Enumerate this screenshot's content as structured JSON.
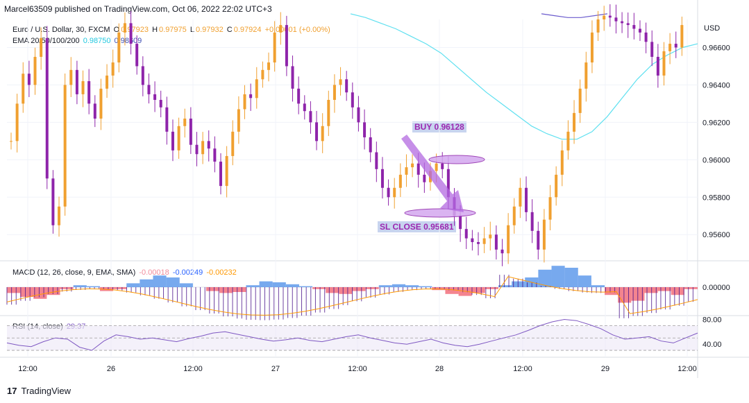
{
  "header": {
    "published": "Marcel63509 published on TradingView.com, Oct 06, 2022 22:02 UTC+3"
  },
  "legend_main": {
    "symbol": "Euro / U.S. Dollar, 30, FXCM",
    "o_label": "O",
    "o_val": "0.97923",
    "h_label": "H",
    "h_val": "0.97975",
    "l_label": "L",
    "l_val": "0.97932",
    "c_label": "C",
    "c_val": "0.97924",
    "change": "+0.00001 (+0.00%)",
    "ema_label": "EMA 20/50/100/200",
    "ema1": "0.98750",
    "ema2": "0.98609"
  },
  "legend_macd": {
    "label": "MACD (12, 26, close, 9, EMA, SMA)",
    "v1": "-0.00018",
    "v2": "-0.00249",
    "v3": "-0.00232"
  },
  "legend_rsi": {
    "label": "RSI (14, close)",
    "v1": "29.37"
  },
  "annotations": {
    "buy": "BUY 0.96128",
    "sl": "SL CLOSE 0.95681"
  },
  "footer": {
    "logo_mark": "17",
    "brand": "TradingView"
  },
  "colors": {
    "bull": "#f0a030",
    "bear": "#8e24aa",
    "ema_fast": "#5ee0f0",
    "ema_slow": "#6a5acd",
    "macd_pos": "#4a8ce8",
    "macd_neg": "#f05060",
    "signal": "#ff9800",
    "rsi": "#7e57c2",
    "arrow": "#b36ae0"
  },
  "chart_data": {
    "type": "candlestick",
    "currency_label": "USD",
    "price_ticks": [
      0.966,
      0.964,
      0.962,
      0.96,
      0.958,
      0.956
    ],
    "price_tick_labels": [
      "0.96600",
      "0.96400",
      "0.96200",
      "0.96000",
      "0.95800",
      "0.95600"
    ],
    "price_range": [
      0.9546,
      0.9675
    ],
    "macd_tick_labels": [
      "0.00000"
    ],
    "rsi_tick_labels": [
      "80.00",
      "40.00"
    ],
    "time_labels": [
      "12:00",
      "26",
      "12:00",
      "27",
      "12:00",
      "28",
      "12:00",
      "29",
      "12:00"
    ],
    "price_path": [
      0.961,
      0.963,
      0.9646,
      0.964,
      0.9655,
      0.9665,
      0.959,
      0.9565,
      0.9575,
      0.964,
      0.9648,
      0.9635,
      0.9642,
      0.963,
      0.9622,
      0.9638,
      0.9645,
      0.9652,
      0.9668,
      0.9673,
      0.9662,
      0.965,
      0.964,
      0.9635,
      0.9632,
      0.9628,
      0.9615,
      0.9605,
      0.9618,
      0.9622,
      0.9608,
      0.9603,
      0.961,
      0.9606,
      0.9599,
      0.9586,
      0.9602,
      0.9615,
      0.9627,
      0.9635,
      0.9633,
      0.9643,
      0.9648,
      0.9652,
      0.9668,
      0.9672,
      0.965,
      0.9638,
      0.963,
      0.9626,
      0.962,
      0.961,
      0.9618,
      0.9632,
      0.964,
      0.9643,
      0.9636,
      0.9628,
      0.962,
      0.9612,
      0.9604,
      0.9595,
      0.9585,
      0.958,
      0.9585,
      0.9592,
      0.9596,
      0.9598,
      0.9592,
      0.9588,
      0.9594,
      0.9598,
      0.9595,
      0.958,
      0.957,
      0.9563,
      0.9558,
      0.9556,
      0.9555,
      0.9558,
      0.956,
      0.9552,
      0.955,
      0.9565,
      0.9575,
      0.9585,
      0.9572,
      0.9562,
      0.9552,
      0.9568,
      0.958,
      0.9592,
      0.9605,
      0.9615,
      0.9625,
      0.9638,
      0.9652,
      0.9668,
      0.9675,
      0.9677,
      0.9676,
      0.9674,
      0.9673,
      0.9672,
      0.967,
      0.9668,
      0.9663,
      0.9655,
      0.9645,
      0.9658,
      0.9662,
      0.966,
      0.9672
    ],
    "ema_fast_path": [
      0.9678,
      0.9676,
      0.9673,
      0.967,
      0.9666,
      0.9662,
      0.9657,
      0.965,
      0.9643,
      0.9636,
      0.963,
      0.9624,
      0.9618,
      0.9614,
      0.9611,
      0.9611,
      0.9615,
      0.9623,
      0.9633,
      0.9643,
      0.9651,
      0.9656,
      0.966,
      0.9662
    ],
    "ema_slow_path": [
      0.9678,
      0.9677,
      0.9676,
      0.9676,
      0.9677,
      0.9678
    ],
    "macd_hist": [
      -0.3,
      -0.5,
      -0.6,
      -0.4,
      -0.1,
      0.1,
      0.05,
      -0.2,
      -0.1,
      0.2,
      0.4,
      0.6,
      0.5,
      0.2,
      0.0,
      -0.2,
      -0.3,
      -0.25,
      0.1,
      0.3,
      0.25,
      0.15,
      0.05,
      -0.1,
      -0.3,
      -0.35,
      -0.2,
      -0.1,
      0.1,
      0.15,
      0.1,
      0.05,
      -0.15,
      -0.35,
      -0.45,
      -0.3,
      -0.1,
      0.1,
      0.3,
      0.5,
      0.9,
      1.1,
      1.0,
      0.6,
      0.1,
      -0.4,
      -0.8,
      -0.7,
      -0.3,
      -0.2,
      -0.4,
      -0.1
    ],
    "rsi": [
      42,
      38,
      36,
      44,
      50,
      48,
      35,
      30,
      45,
      55,
      52,
      48,
      50,
      47,
      44,
      49,
      53,
      58,
      60,
      56,
      52,
      48,
      45,
      47,
      50,
      46,
      44,
      48,
      52,
      55,
      50,
      46,
      42,
      40,
      44,
      48,
      42,
      38,
      36,
      40,
      45,
      50,
      55,
      62,
      70,
      76,
      80,
      78,
      72,
      65,
      55,
      48,
      50,
      52,
      45,
      42,
      50,
      58
    ],
    "annotation_prices": {
      "buy": 0.96128,
      "sl_close": 0.95681
    }
  }
}
